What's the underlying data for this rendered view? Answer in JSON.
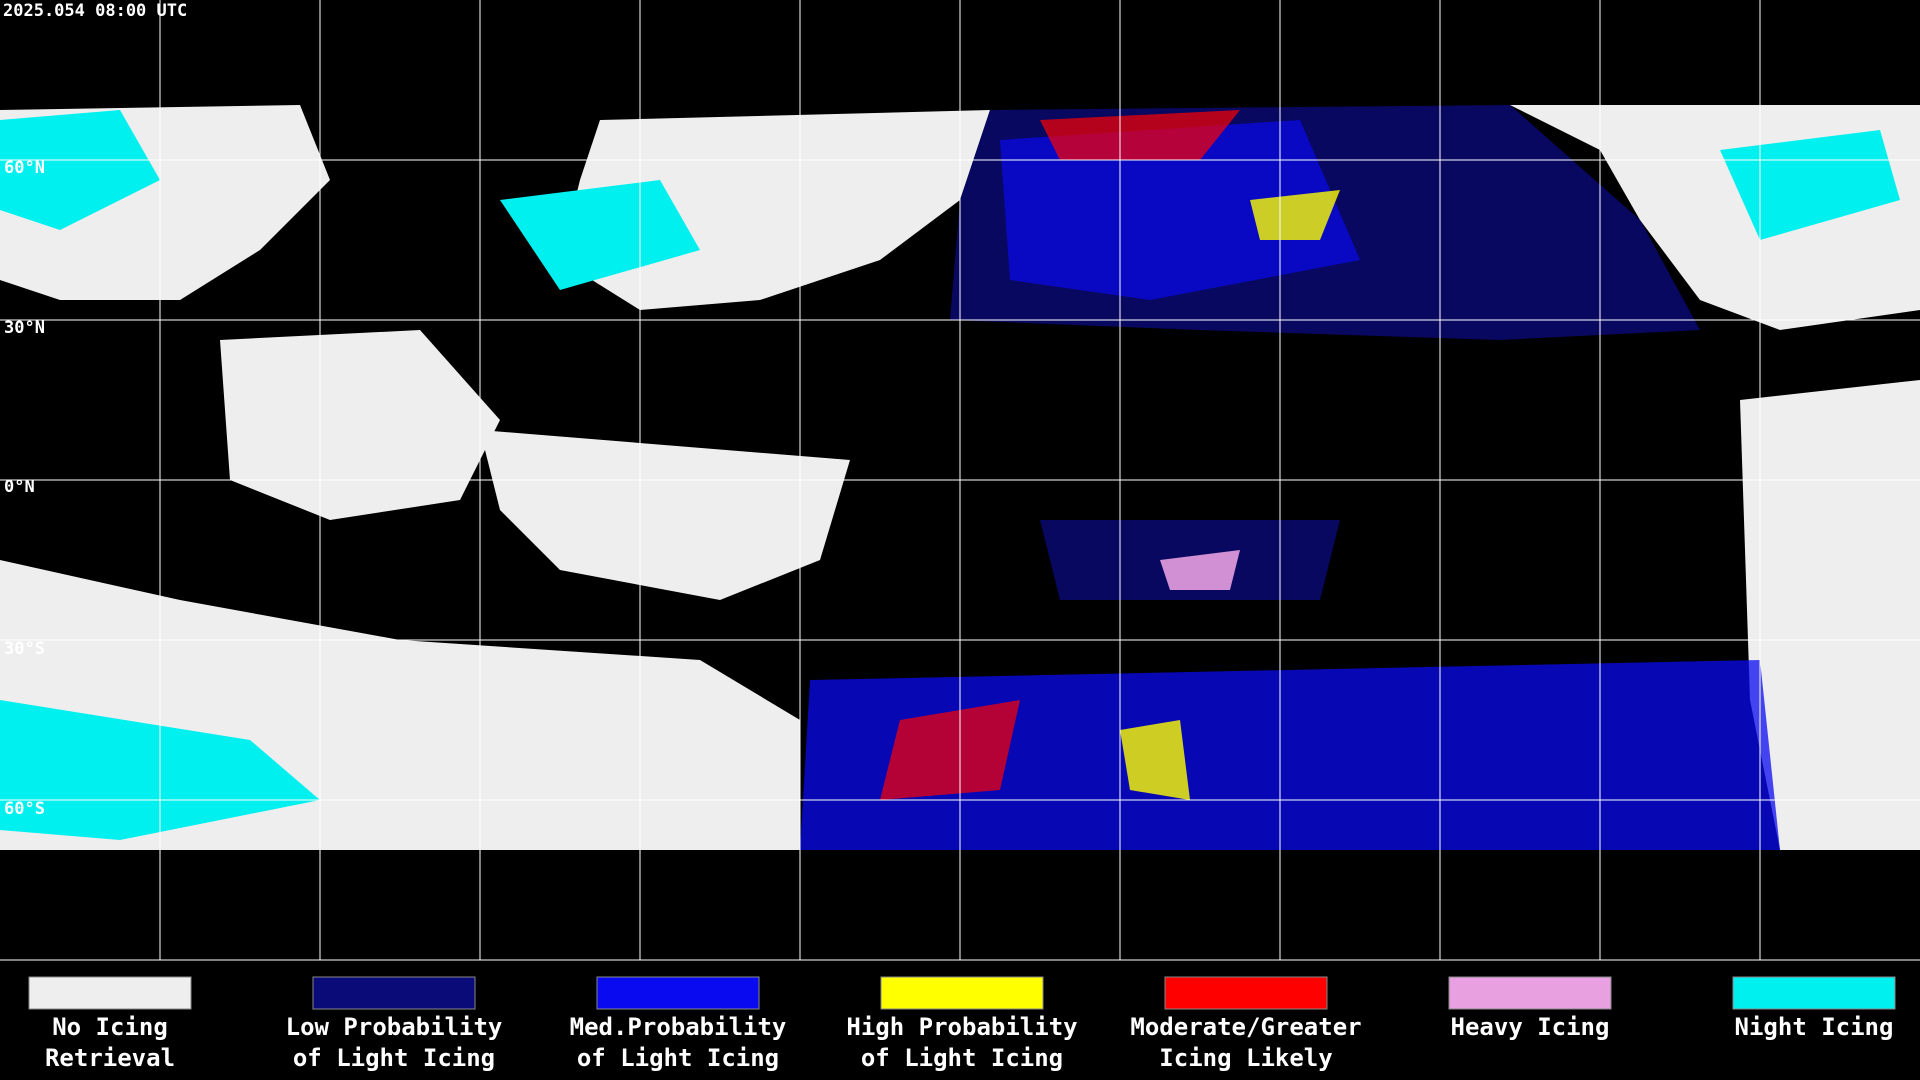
{
  "header": {
    "timestamp": "2025.054 08:00 UTC"
  },
  "map": {
    "latitude_labels": [
      "60°N",
      "30°N",
      "0°N",
      "30°S",
      "60°S"
    ]
  },
  "legend": {
    "items": [
      {
        "label": [
          "No Icing",
          "Retrieval"
        ],
        "color": "#eeeeee"
      },
      {
        "label": [
          "Low Probability",
          "of Light Icing"
        ],
        "color": "#0a0a78"
      },
      {
        "label": [
          "Med.Probability",
          "of Light Icing"
        ],
        "color": "#0a0af0"
      },
      {
        "label": [
          "High Probability",
          "of Light Icing"
        ],
        "color": "#ffff00"
      },
      {
        "label": [
          "Moderate/Greater",
          "Icing Likely"
        ],
        "color": "#ff0000"
      },
      {
        "label": [
          "Heavy Icing"
        ],
        "color": "#e8a0e0"
      },
      {
        "label": [
          "Night Icing"
        ],
        "color": "#00f0f0"
      }
    ]
  }
}
